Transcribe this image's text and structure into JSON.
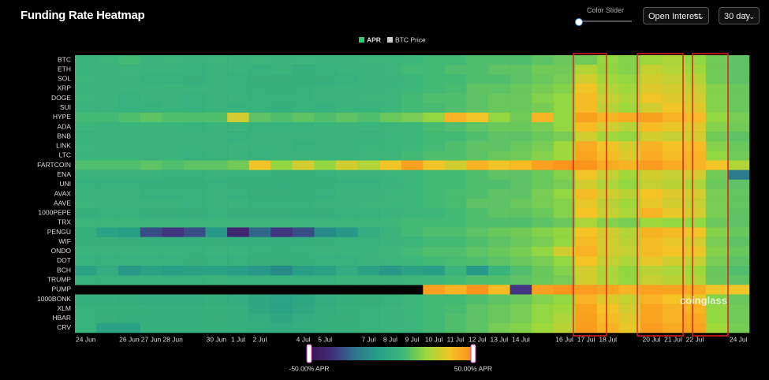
{
  "header": {
    "title": "Funding Rate Heatmap",
    "slider_label": "Color Slider",
    "metric_select": "Open Interest",
    "range_select": "30 day"
  },
  "chart_data": {
    "type": "heatmap",
    "rows": [
      "BTC",
      "ETH",
      "SOL",
      "XRP",
      "DOGE",
      "SUI",
      "HYPE",
      "ADA",
      "BNB",
      "LINK",
      "LTC",
      "FARTCOIN",
      "ENA",
      "UNI",
      "AVAX",
      "AAVE",
      "1000PEPE",
      "TRX",
      "PENGU",
      "WIF",
      "ONDO",
      "DOT",
      "BCH",
      "TRUMP",
      "PUMP",
      "1000BONK",
      "XLM",
      "HBAR",
      "CRV"
    ],
    "categories": [
      "24 Jun",
      null,
      "26 Jun",
      "27 Jun",
      "28 Jun",
      null,
      "30 Jun",
      "1 Jul",
      "2 Jul",
      null,
      "4 Jul",
      "5 Jul",
      null,
      "7 Jul",
      "8 Jul",
      "9 Jul",
      "10 Jul",
      "11 Jul",
      "12 Jul",
      "13 Jul",
      "14 Jul",
      null,
      "16 Jul",
      "17 Jul",
      "18 Jul",
      null,
      "20 Jul",
      "21 Jul",
      "22 Jul",
      null,
      "24 Jul"
    ],
    "values": [
      [
        5,
        6,
        8,
        5,
        6,
        5,
        6,
        5,
        6,
        5,
        6,
        5,
        5,
        6,
        6,
        7,
        8,
        8,
        10,
        10,
        10,
        12,
        14,
        15,
        20,
        18,
        22,
        24,
        20,
        15,
        12
      ],
      [
        5,
        5,
        6,
        5,
        5,
        4,
        5,
        5,
        4,
        5,
        3,
        4,
        5,
        5,
        6,
        8,
        8,
        10,
        10,
        12,
        12,
        15,
        15,
        25,
        20,
        18,
        28,
        25,
        22,
        15,
        12
      ],
      [
        6,
        5,
        5,
        4,
        4,
        3,
        5,
        4,
        3,
        3,
        2,
        3,
        4,
        5,
        5,
        6,
        8,
        8,
        10,
        10,
        12,
        14,
        16,
        30,
        22,
        20,
        30,
        28,
        25,
        15,
        12
      ],
      [
        5,
        5,
        5,
        5,
        6,
        5,
        5,
        4,
        4,
        3,
        4,
        5,
        5,
        5,
        6,
        7,
        8,
        9,
        12,
        12,
        14,
        16,
        18,
        35,
        25,
        22,
        32,
        30,
        28,
        18,
        14
      ],
      [
        6,
        5,
        4,
        5,
        5,
        4,
        5,
        5,
        4,
        4,
        4,
        5,
        5,
        6,
        6,
        8,
        10,
        10,
        12,
        14,
        14,
        18,
        20,
        38,
        28,
        24,
        35,
        32,
        30,
        18,
        14
      ],
      [
        5,
        5,
        4,
        4,
        5,
        4,
        5,
        4,
        4,
        3,
        4,
        4,
        5,
        5,
        6,
        8,
        9,
        10,
        12,
        14,
        14,
        16,
        20,
        38,
        26,
        22,
        30,
        35,
        32,
        18,
        14
      ],
      [
        8,
        8,
        10,
        12,
        10,
        10,
        10,
        30,
        12,
        10,
        12,
        10,
        12,
        10,
        14,
        16,
        20,
        40,
        35,
        20,
        15,
        40,
        20,
        45,
        40,
        42,
        45,
        40,
        38,
        20,
        16
      ],
      [
        6,
        5,
        5,
        5,
        5,
        4,
        5,
        5,
        4,
        4,
        4,
        5,
        5,
        6,
        6,
        7,
        9,
        10,
        12,
        14,
        14,
        16,
        20,
        38,
        30,
        25,
        38,
        34,
        32,
        18,
        15
      ],
      [
        5,
        5,
        5,
        5,
        5,
        5,
        5,
        4,
        5,
        5,
        5,
        5,
        5,
        5,
        6,
        7,
        8,
        8,
        10,
        12,
        12,
        14,
        16,
        30,
        22,
        20,
        30,
        28,
        30,
        15,
        12
      ],
      [
        6,
        5,
        5,
        5,
        5,
        5,
        5,
        5,
        5,
        5,
        4,
        5,
        5,
        6,
        6,
        7,
        8,
        10,
        12,
        12,
        14,
        16,
        22,
        42,
        35,
        30,
        40,
        36,
        38,
        18,
        14
      ],
      [
        5,
        5,
        5,
        5,
        5,
        4,
        5,
        5,
        4,
        5,
        5,
        5,
        5,
        6,
        6,
        8,
        10,
        10,
        12,
        14,
        15,
        18,
        22,
        44,
        38,
        32,
        42,
        38,
        40,
        20,
        15
      ],
      [
        10,
        10,
        10,
        12,
        10,
        12,
        12,
        15,
        35,
        20,
        30,
        20,
        30,
        25,
        35,
        45,
        35,
        30,
        40,
        35,
        38,
        45,
        48,
        48,
        42,
        40,
        46,
        42,
        40,
        35,
        25
      ],
      [
        5,
        5,
        5,
        5,
        4,
        4,
        5,
        4,
        4,
        3,
        3,
        4,
        5,
        5,
        6,
        7,
        8,
        8,
        10,
        12,
        12,
        14,
        18,
        35,
        28,
        22,
        30,
        28,
        30,
        15,
        -20
      ],
      [
        4,
        4,
        4,
        3,
        3,
        3,
        4,
        3,
        3,
        2,
        3,
        3,
        4,
        4,
        5,
        6,
        8,
        8,
        10,
        10,
        12,
        14,
        16,
        30,
        24,
        20,
        28,
        26,
        24,
        14,
        12
      ],
      [
        5,
        5,
        5,
        4,
        4,
        4,
        5,
        4,
        3,
        3,
        3,
        4,
        5,
        5,
        6,
        7,
        8,
        9,
        10,
        12,
        12,
        16,
        20,
        38,
        30,
        26,
        36,
        32,
        30,
        16,
        13
      ],
      [
        6,
        5,
        5,
        5,
        5,
        4,
        5,
        5,
        4,
        4,
        4,
        5,
        5,
        6,
        6,
        7,
        8,
        9,
        12,
        12,
        14,
        16,
        18,
        34,
        26,
        22,
        34,
        30,
        28,
        16,
        13
      ],
      [
        3,
        4,
        4,
        3,
        3,
        3,
        4,
        3,
        3,
        3,
        3,
        3,
        4,
        4,
        5,
        6,
        7,
        8,
        10,
        12,
        12,
        14,
        18,
        36,
        28,
        24,
        40,
        34,
        30,
        16,
        12
      ],
      [
        6,
        6,
        6,
        6,
        6,
        6,
        6,
        6,
        6,
        6,
        6,
        6,
        6,
        6,
        7,
        8,
        8,
        8,
        10,
        10,
        10,
        12,
        14,
        24,
        18,
        16,
        22,
        20,
        20,
        14,
        12
      ],
      [
        2,
        -5,
        -8,
        -30,
        -35,
        -30,
        -10,
        -40,
        -25,
        -35,
        -30,
        -15,
        -10,
        0,
        5,
        8,
        10,
        10,
        12,
        14,
        15,
        18,
        20,
        36,
        30,
        25,
        40,
        38,
        35,
        18,
        14
      ],
      [
        3,
        3,
        3,
        2,
        2,
        2,
        3,
        2,
        2,
        1,
        2,
        3,
        4,
        4,
        5,
        6,
        8,
        8,
        10,
        12,
        14,
        16,
        20,
        38,
        30,
        26,
        38,
        34,
        30,
        16,
        12
      ],
      [
        5,
        5,
        5,
        5,
        5,
        4,
        5,
        5,
        4,
        4,
        4,
        5,
        5,
        6,
        7,
        8,
        10,
        10,
        12,
        14,
        16,
        20,
        30,
        40,
        30,
        28,
        38,
        36,
        34,
        18,
        14
      ],
      [
        4,
        4,
        4,
        4,
        4,
        3,
        4,
        4,
        3,
        3,
        3,
        4,
        4,
        5,
        6,
        7,
        8,
        9,
        10,
        12,
        14,
        16,
        20,
        36,
        28,
        24,
        34,
        30,
        28,
        16,
        12
      ],
      [
        -5,
        0,
        -10,
        -5,
        -8,
        -5,
        -5,
        -8,
        -10,
        -15,
        -8,
        -5,
        0,
        -5,
        -10,
        -5,
        -8,
        5,
        -10,
        5,
        10,
        14,
        18,
        30,
        24,
        20,
        26,
        24,
        22,
        14,
        10
      ],
      [
        4,
        4,
        4,
        4,
        4,
        4,
        5,
        4,
        4,
        4,
        4,
        4,
        5,
        5,
        5,
        6,
        7,
        8,
        10,
        10,
        12,
        14,
        16,
        30,
        24,
        20,
        28,
        26,
        24,
        14,
        12
      ],
      [
        null,
        null,
        null,
        null,
        null,
        null,
        null,
        null,
        null,
        null,
        null,
        null,
        null,
        null,
        null,
        null,
        45,
        40,
        48,
        38,
        -35,
        45,
        48,
        46,
        44,
        40,
        45,
        44,
        42,
        35,
        35
      ],
      [
        2,
        2,
        1,
        0,
        0,
        0,
        2,
        0,
        -2,
        -5,
        -3,
        0,
        2,
        3,
        4,
        6,
        8,
        8,
        10,
        12,
        14,
        18,
        20,
        40,
        32,
        28,
        40,
        36,
        34,
        18,
        14
      ],
      [
        4,
        3,
        3,
        2,
        2,
        2,
        3,
        2,
        -2,
        -5,
        -2,
        1,
        3,
        4,
        5,
        6,
        8,
        9,
        12,
        14,
        16,
        20,
        22,
        44,
        36,
        30,
        44,
        40,
        40,
        20,
        15
      ],
      [
        4,
        3,
        2,
        2,
        2,
        2,
        3,
        2,
        0,
        -2,
        0,
        2,
        3,
        4,
        5,
        6,
        8,
        10,
        12,
        14,
        16,
        20,
        24,
        45,
        38,
        32,
        44,
        40,
        42,
        20,
        15
      ],
      [
        4,
        -5,
        -5,
        2,
        2,
        2,
        3,
        2,
        1,
        0,
        1,
        2,
        3,
        4,
        5,
        6,
        8,
        10,
        12,
        16,
        18,
        22,
        26,
        46,
        40,
        34,
        46,
        42,
        44,
        22,
        16
      ]
    ],
    "colorlim": [
      -50,
      50
    ],
    "colorticks": [
      {
        "value": -50,
        "label": "-50.00% APR"
      },
      {
        "value": 50,
        "label": "50.00% APR"
      }
    ],
    "colorscale": [
      "#3b0f4f",
      "#42307f",
      "#2a788e",
      "#27a086",
      "#3db779",
      "#9bd93c",
      "#f5c426",
      "#fb8c1c"
    ],
    "legend": [
      {
        "name": "APR",
        "color": "#2ecc71"
      },
      {
        "name": "BTC Price",
        "color": "#cccccc"
      }
    ],
    "watermark": "coinglass"
  }
}
